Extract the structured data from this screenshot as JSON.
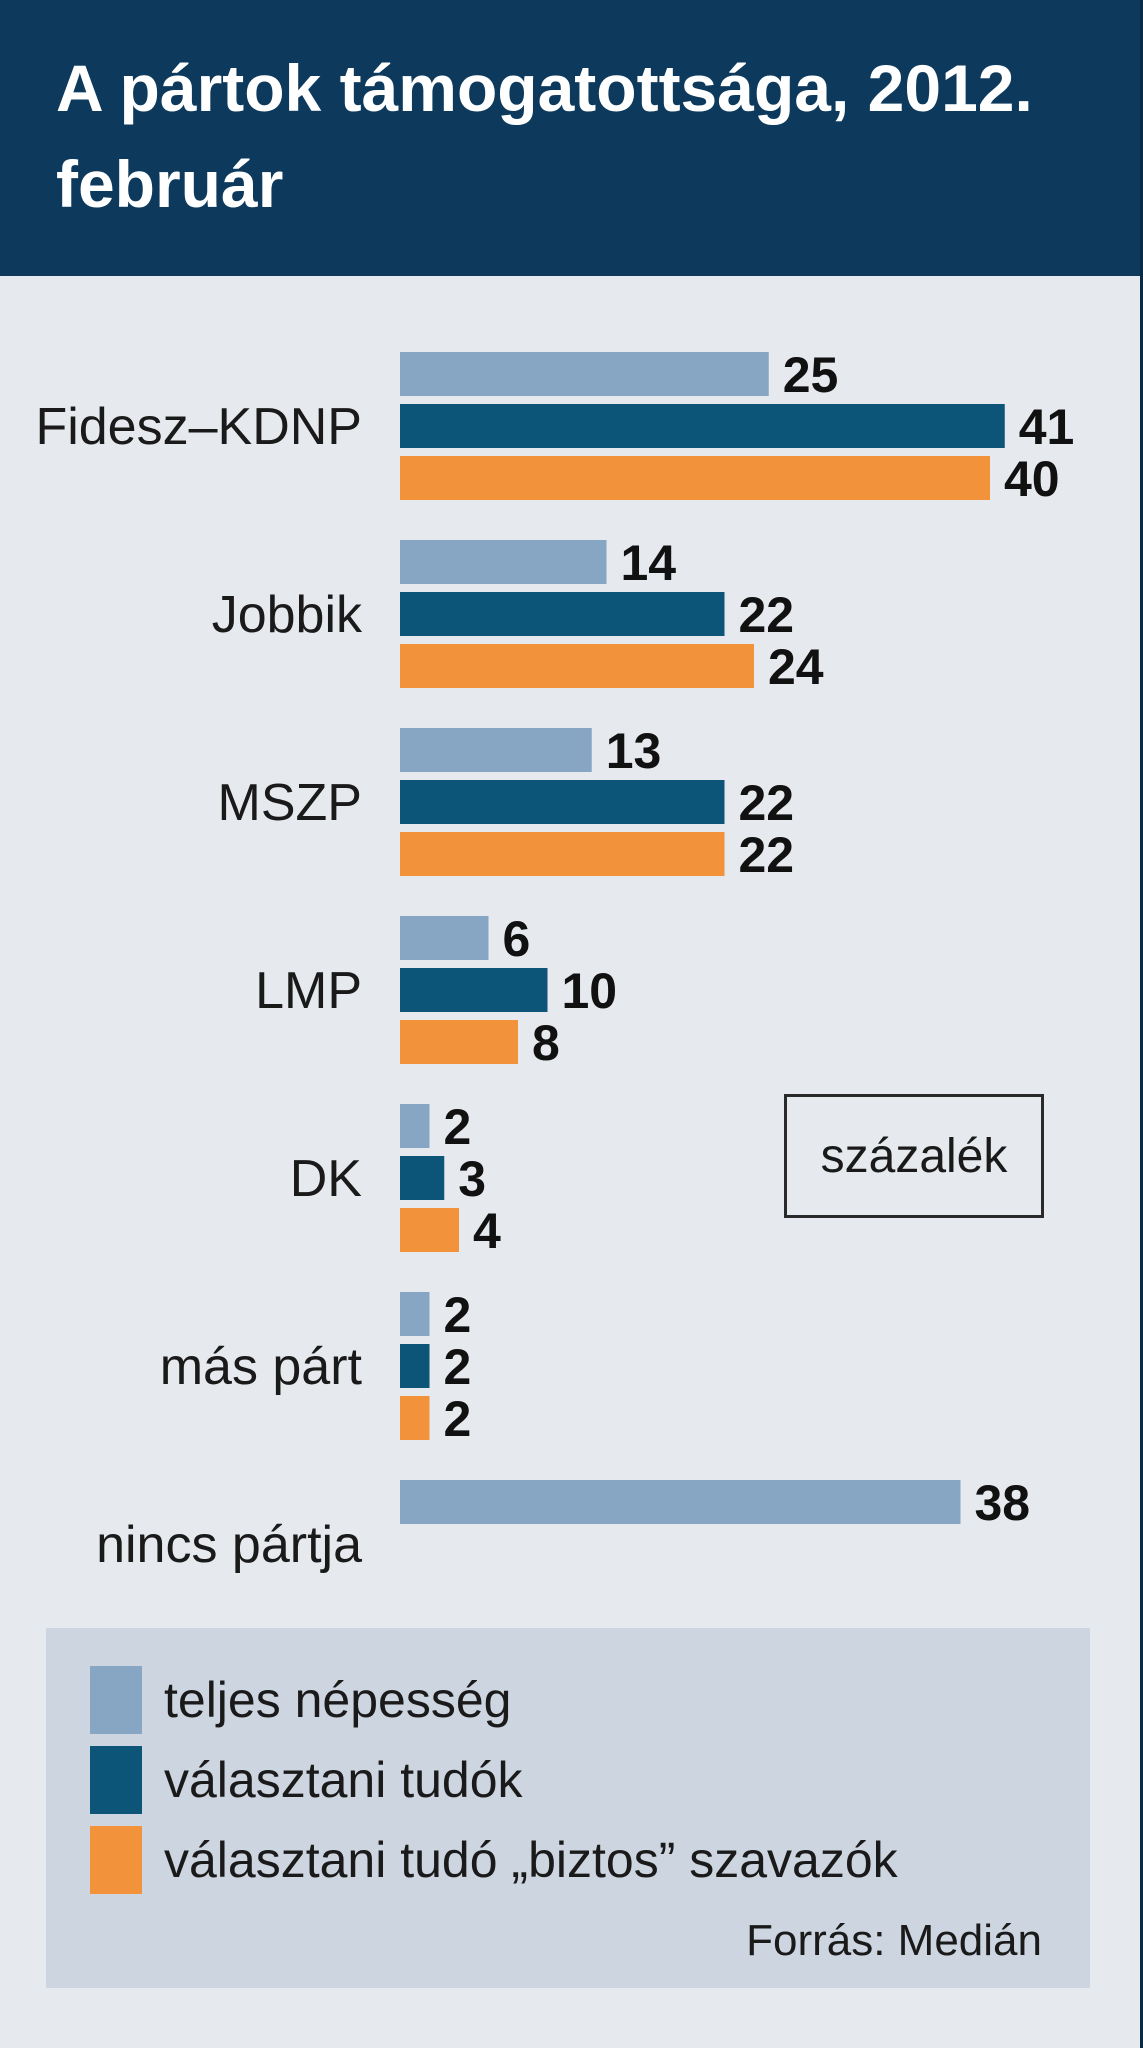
{
  "chart_data": {
    "type": "bar",
    "orientation": "horizontal",
    "title": "A pártok támogatottsága, 2012. február",
    "unit": "százalék",
    "categories": [
      "Fidesz–KDNP",
      "Jobbik",
      "MSZP",
      "LMP",
      "DK",
      "más párt",
      "nincs pártja"
    ],
    "series": [
      {
        "name": "teljes népesség",
        "color": "#86a6c4",
        "values": [
          25,
          14,
          13,
          6,
          2,
          2,
          38
        ]
      },
      {
        "name": "választani tudók",
        "color": "#0c5478",
        "values": [
          41,
          22,
          22,
          10,
          3,
          2,
          null
        ]
      },
      {
        "name": "választani tudó „biztos” szavazók",
        "color": "#f2923a",
        "values": [
          40,
          24,
          22,
          8,
          4,
          2,
          null
        ]
      }
    ],
    "xlim": [
      0,
      45
    ],
    "source": "Forrás: Medián"
  }
}
